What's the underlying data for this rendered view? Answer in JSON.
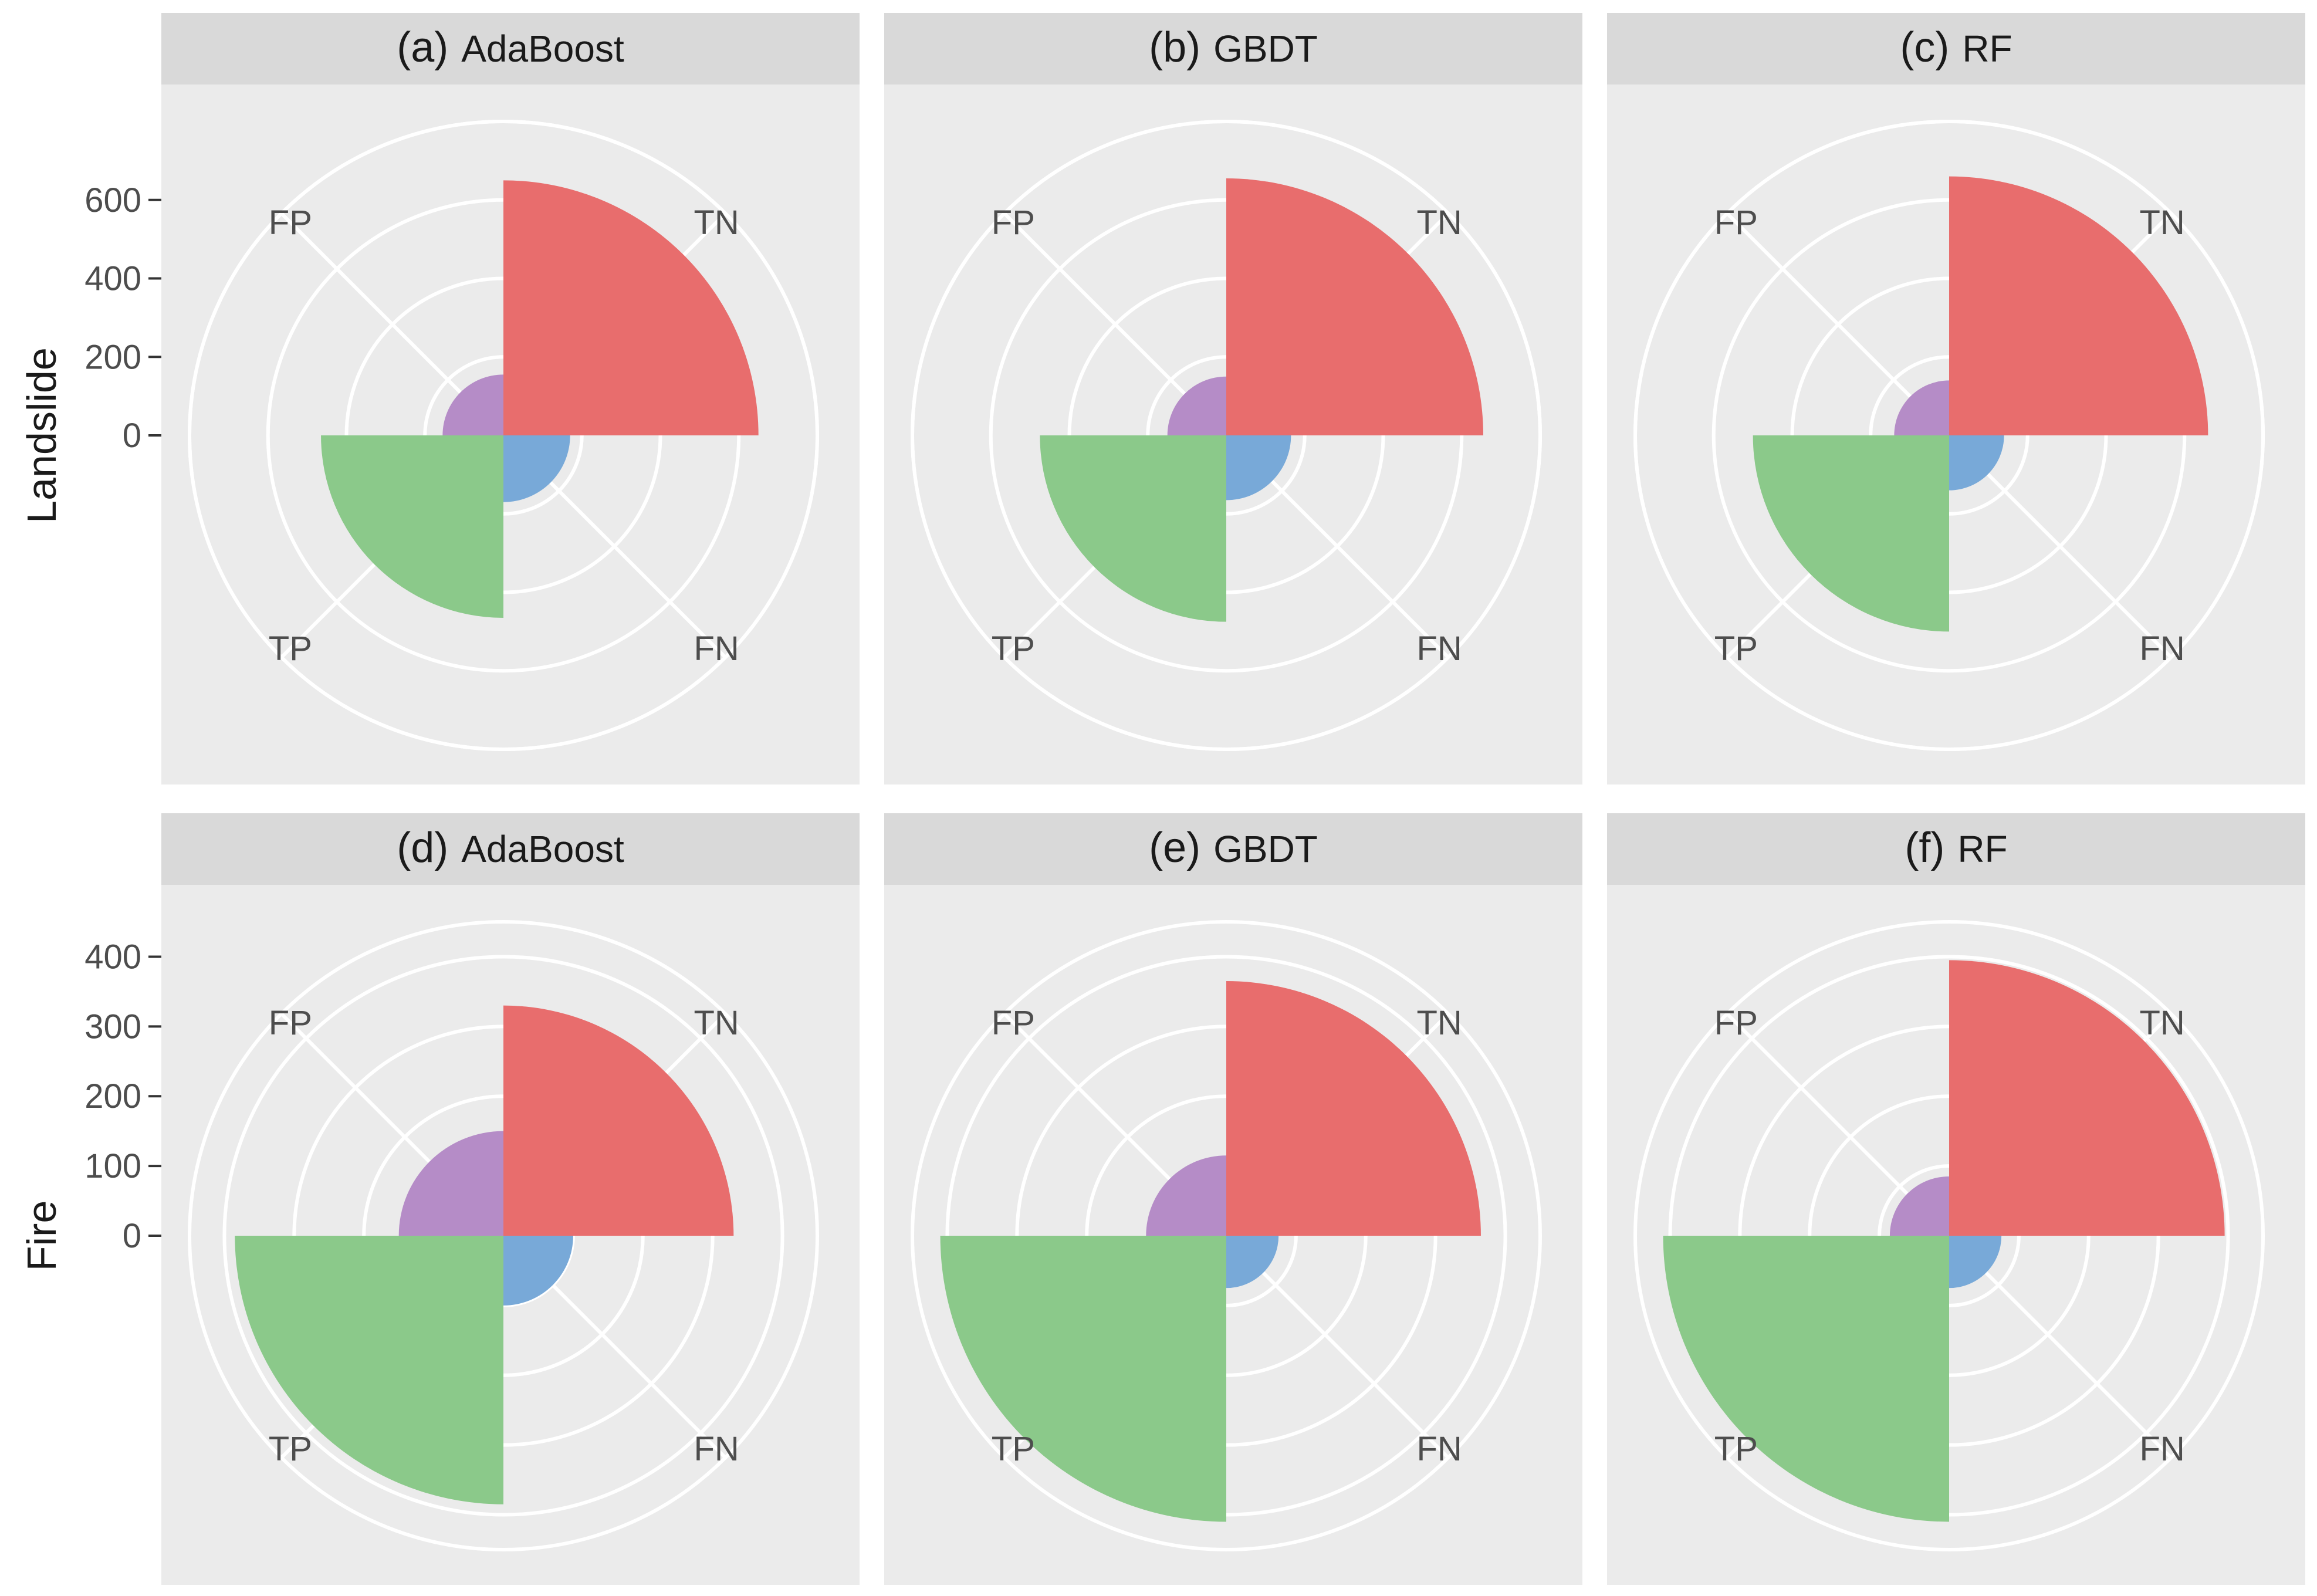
{
  "row_labels": [
    "Landslide",
    "Fire"
  ],
  "row_axes": [
    {
      "ticks": [
        0,
        200,
        400,
        600
      ]
    },
    {
      "ticks": [
        0,
        100,
        200,
        300,
        400
      ]
    }
  ],
  "category_labels": {
    "TN": "TN",
    "FN": "FN",
    "TP": "TP",
    "FP": "FP"
  },
  "colors": {
    "TN": "#E86D6D",
    "FN": "#78A9D8",
    "TP": "#8BC98A",
    "FP": "#B58CC7",
    "panel_bg": "#EBEBEB",
    "strip_bg": "#D9D9D9",
    "grid": "#FFFFFF",
    "text": "#4D4D4D"
  },
  "chart_data": [
    {
      "type": "polar-bar",
      "panel": "(a)",
      "title": "AdaBoost",
      "row": "Landslide",
      "categories": [
        "TN",
        "FN",
        "TP",
        "FP"
      ],
      "values": [
        650,
        170,
        465,
        155
      ],
      "rlim": [
        0,
        800
      ]
    },
    {
      "type": "polar-bar",
      "panel": "(b)",
      "title": "GBDT",
      "row": "Landslide",
      "categories": [
        "TN",
        "FN",
        "TP",
        "FP"
      ],
      "values": [
        655,
        165,
        475,
        150
      ],
      "rlim": [
        0,
        800
      ]
    },
    {
      "type": "polar-bar",
      "panel": "(c)",
      "title": "RF",
      "row": "Landslide",
      "categories": [
        "TN",
        "FN",
        "TP",
        "FP"
      ],
      "values": [
        660,
        140,
        500,
        140
      ],
      "rlim": [
        0,
        800
      ]
    },
    {
      "type": "polar-bar",
      "panel": "(d)",
      "title": "AdaBoost",
      "row": "Fire",
      "categories": [
        "TN",
        "FN",
        "TP",
        "FP"
      ],
      "values": [
        330,
        100,
        385,
        150
      ],
      "rlim": [
        0,
        450
      ]
    },
    {
      "type": "polar-bar",
      "panel": "(e)",
      "title": "GBDT",
      "row": "Fire",
      "categories": [
        "TN",
        "FN",
        "TP",
        "FP"
      ],
      "values": [
        365,
        75,
        410,
        115
      ],
      "rlim": [
        0,
        450
      ]
    },
    {
      "type": "polar-bar",
      "panel": "(f)",
      "title": "RF",
      "row": "Fire",
      "categories": [
        "TN",
        "FN",
        "TP",
        "FP"
      ],
      "values": [
        395,
        75,
        410,
        85
      ],
      "rlim": [
        0,
        450
      ]
    }
  ]
}
